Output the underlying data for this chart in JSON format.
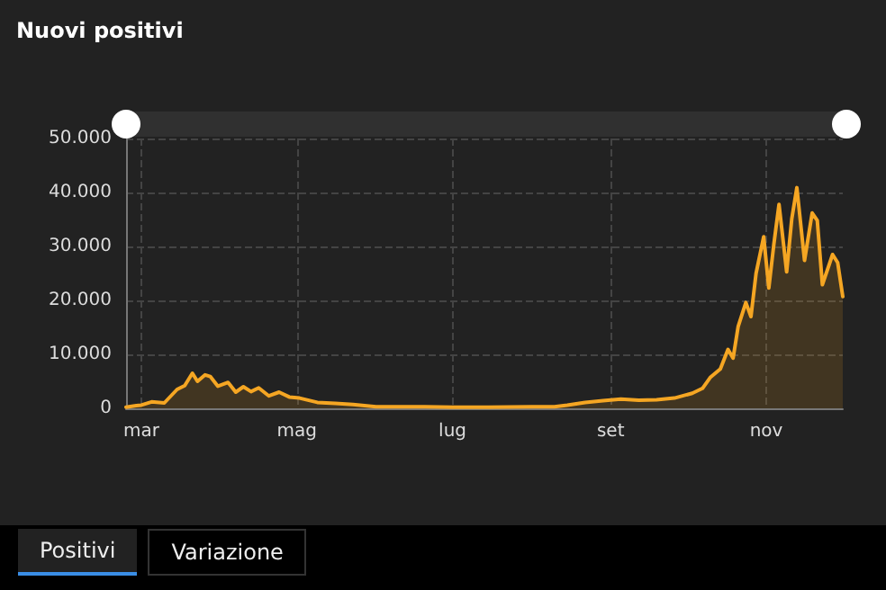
{
  "chart_data": {
    "type": "area",
    "title": "Nuovi positivi",
    "x": [
      "--02-24",
      "--02-28",
      "--03-01",
      "--03-05",
      "--03-10",
      "--03-15",
      "--03-18",
      "--03-21",
      "--03-23",
      "--03-26",
      "--03-28",
      "--03-31",
      "--04-04",
      "--04-07",
      "--04-10",
      "--04-13",
      "--04-16",
      "--04-20",
      "--04-24",
      "--04-28",
      "--05-02",
      "--05-09",
      "--05-16",
      "--05-23",
      "--06-01",
      "--06-10",
      "--06-20",
      "--07-01",
      "--07-15",
      "--08-01",
      "--08-10",
      "--08-15",
      "--08-22",
      "--08-29",
      "--09-05",
      "--09-12",
      "--09-19",
      "--09-26",
      "--10-03",
      "--10-07",
      "--10-10",
      "--10-14",
      "--10-17",
      "--10-19",
      "--10-21",
      "--10-24",
      "--10-26",
      "--10-28",
      "--10-31",
      "--11-02",
      "--11-04",
      "--11-06",
      "--11-09",
      "--11-11",
      "--11-13",
      "--11-16",
      "--11-19",
      "--11-21",
      "--11-23",
      "--11-27",
      "--11-29",
      "--12-01"
    ],
    "series": [
      {
        "color": "#f5a623",
        "values": [
          200,
          500,
          600,
          1200,
          1000,
          3500,
          4200,
          6500,
          5000,
          6200,
          5900,
          4100,
          4800,
          3000,
          4000,
          3100,
          3800,
          2300,
          3000,
          2100,
          1900,
          1100,
          900,
          700,
          300,
          300,
          300,
          200,
          200,
          300,
          300,
          600,
          1100,
          1400,
          1700,
          1500,
          1600,
          1900,
          2800,
          3700,
          5700,
          7300,
          10900,
          9300,
          15200,
          19600,
          17000,
          25000,
          31800,
          22300,
          30500,
          37800,
          25300,
          35100,
          40900,
          27400,
          36200,
          34800,
          22900,
          28500,
          27000,
          20700
        ]
      }
    ],
    "xlim": [
      "--02-24",
      "--12-01"
    ],
    "xticks": [
      {
        "value": "--03-01",
        "label": "mar"
      },
      {
        "value": "--05-01",
        "label": "mag"
      },
      {
        "value": "--07-01",
        "label": "lug"
      },
      {
        "value": "--09-01",
        "label": "set"
      },
      {
        "value": "--11-01",
        "label": "nov"
      }
    ],
    "ylim": [
      0,
      50000
    ],
    "yticks": [
      {
        "value": 0,
        "label": "0"
      },
      {
        "value": 10000,
        "label": "10.000"
      },
      {
        "value": 20000,
        "label": "20.000"
      },
      {
        "value": 30000,
        "label": "30.000"
      },
      {
        "value": 40000,
        "label": "40.000"
      },
      {
        "value": 50000,
        "label": "50.000"
      }
    ],
    "grid": true,
    "marker": "none",
    "line_style": "solid",
    "annotations": [
      "Positivi",
      "Variazione"
    ]
  }
}
